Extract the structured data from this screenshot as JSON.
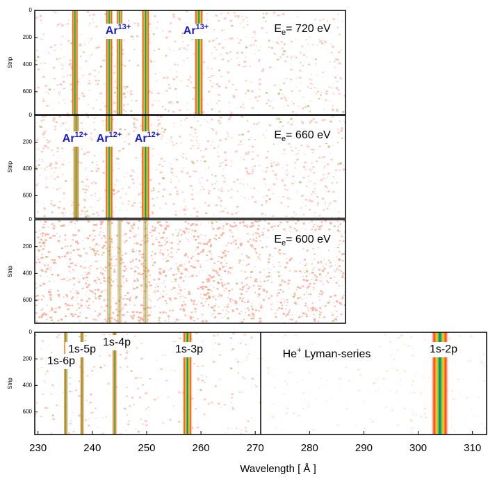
{
  "chart_data": [
    {
      "type": "spectrum",
      "ylabel": "Strip",
      "xlim": [
        229.4,
        286.6
      ],
      "ylim": [
        0,
        770
      ],
      "yticks": [
        0,
        200,
        400,
        600
      ],
      "lines": [
        236.8,
        243.1,
        245.0,
        249.8,
        259.6
      ],
      "annotations": [
        {
          "base": "Ar",
          "sup": "13+"
        },
        {
          "base": "Ar",
          "sup": "13+"
        },
        {
          "base": "E",
          "sub": "e",
          "rest": "= 720 eV"
        }
      ]
    },
    {
      "type": "spectrum",
      "ylabel": "Strip",
      "xlim": [
        229.4,
        286.6
      ],
      "ylim": [
        0,
        770
      ],
      "yticks": [
        0,
        200,
        400,
        600
      ],
      "lines": [
        237.0,
        243.1,
        249.8
      ],
      "annotations": [
        {
          "base": "Ar",
          "sup": "12+"
        },
        {
          "base": "Ar",
          "sup": "12+"
        },
        {
          "base": "Ar",
          "sup": "12+"
        },
        {
          "base": "E",
          "sub": "e",
          "rest": "= 660 eV"
        }
      ]
    },
    {
      "type": "spectrum",
      "ylabel": "Strip",
      "xlim": [
        229.4,
        286.6
      ],
      "ylim": [
        0,
        770
      ],
      "yticks": [
        0,
        200,
        400,
        600
      ],
      "lines": [
        243.1,
        245.0,
        249.8
      ],
      "annotations": [
        {
          "base": "E",
          "sub": "e",
          "rest": "= 600 eV"
        }
      ]
    },
    {
      "type": "spectrum",
      "ylabel": "Strip",
      "xlabel": "Wavelength [ Å ]",
      "xlim": [
        229.4,
        312.6
      ],
      "ylim": [
        0,
        770
      ],
      "yticks": [
        0,
        200,
        400,
        600
      ],
      "xticks": [
        230,
        240,
        250,
        260,
        270,
        280,
        290,
        300,
        310
      ],
      "lines": [
        235.1,
        238.1,
        244.1,
        257.5,
        304.0
      ],
      "annotations": [
        {
          "base": "1s-6p"
        },
        {
          "base": "1s-5p"
        },
        {
          "base": "1s-4p"
        },
        {
          "base": "1s-3p"
        },
        {
          "base": "He",
          "sup": "+",
          "rest": " Lyman-series"
        },
        {
          "base": "1s-2p"
        }
      ]
    }
  ]
}
